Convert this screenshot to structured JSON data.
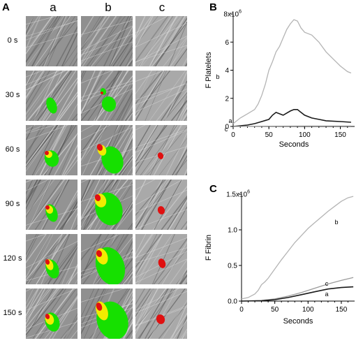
{
  "panel_a": {
    "letter": "A",
    "columns": [
      "a",
      "b",
      "c"
    ],
    "rows": [
      "0 s",
      "30 s",
      "60 s",
      "90 s",
      "120 s",
      "150 s"
    ]
  },
  "colors": {
    "platelets": "#16e000",
    "fibrin": "#e01010",
    "overlap": "#f3ec00",
    "trace_b": "#b4b4b4",
    "trace_a": "#1a1a1a",
    "trace_c": "#9a9a9a"
  },
  "chart_data": [
    {
      "type": "line",
      "panel": "B",
      "ylabel": "F Platelets",
      "xlabel": "Seconds",
      "y_multiplier": "x10",
      "y_multiplier_exp": "6",
      "xlim": [
        0,
        170
      ],
      "ylim": [
        0,
        8
      ],
      "xticks": [
        0,
        50,
        100,
        150
      ],
      "yticks": [
        0,
        2,
        4,
        6,
        8
      ],
      "ytick_labels": [
        "0",
        "2",
        "4",
        "6",
        "8x10"
      ],
      "series": [
        {
          "name": "b",
          "color": "#b4b4b4",
          "x": [
            0,
            10,
            20,
            30,
            35,
            40,
            45,
            50,
            55,
            60,
            65,
            70,
            75,
            80,
            85,
            90,
            95,
            100,
            110,
            120,
            130,
            140,
            150,
            160,
            165
          ],
          "y": [
            0.2,
            0.6,
            0.9,
            1.2,
            1.6,
            2.2,
            3.0,
            4.0,
            4.6,
            5.3,
            5.7,
            6.3,
            6.9,
            7.3,
            7.6,
            7.5,
            7.0,
            6.7,
            6.5,
            6.0,
            5.3,
            4.8,
            4.3,
            3.9,
            3.8
          ]
        },
        {
          "name": "a",
          "color": "#1a1a1a",
          "x": [
            0,
            20,
            30,
            40,
            50,
            55,
            60,
            65,
            70,
            80,
            85,
            90,
            95,
            100,
            110,
            120,
            130,
            150,
            165
          ],
          "y": [
            0,
            0.1,
            0.2,
            0.35,
            0.5,
            0.8,
            1.0,
            0.9,
            0.8,
            1.1,
            1.2,
            1.2,
            1.0,
            0.8,
            0.6,
            0.5,
            0.4,
            0.35,
            0.3
          ]
        },
        {
          "name": "c",
          "color": "#9a9a9a",
          "x": [
            0,
            50,
            100,
            165
          ],
          "y": [
            0,
            0.02,
            0.03,
            0.03
          ]
        }
      ]
    },
    {
      "type": "line",
      "panel": "C",
      "ylabel": "F Fibrin",
      "xlabel": "Seconds",
      "y_multiplier": "1.5x10",
      "y_multiplier_exp": "6",
      "xlim": [
        0,
        170
      ],
      "ylim": [
        0,
        1.5
      ],
      "xticks": [
        0,
        50,
        100,
        150
      ],
      "yticks": [
        0,
        0.5,
        1.0,
        1.5
      ],
      "ytick_labels": [
        "0.0",
        "0.5",
        "1.0",
        "1.5x10"
      ],
      "series": [
        {
          "name": "b",
          "color": "#b4b4b4",
          "x": [
            0,
            10,
            20,
            25,
            30,
            35,
            40,
            50,
            60,
            70,
            80,
            90,
            100,
            110,
            120,
            130,
            140,
            150,
            160,
            168
          ],
          "y": [
            0.03,
            0.05,
            0.1,
            0.15,
            0.23,
            0.27,
            0.32,
            0.45,
            0.58,
            0.7,
            0.82,
            0.92,
            1.02,
            1.1,
            1.18,
            1.26,
            1.33,
            1.4,
            1.45,
            1.47
          ]
        },
        {
          "name": "c",
          "color": "#9a9a9a",
          "x": [
            0,
            30,
            50,
            70,
            90,
            110,
            130,
            150,
            168
          ],
          "y": [
            0,
            0.01,
            0.03,
            0.07,
            0.12,
            0.18,
            0.24,
            0.29,
            0.33
          ]
        },
        {
          "name": "a",
          "color": "#1a1a1a",
          "x": [
            0,
            30,
            50,
            70,
            90,
            110,
            130,
            150,
            168
          ],
          "y": [
            0,
            0.005,
            0.02,
            0.05,
            0.09,
            0.13,
            0.17,
            0.19,
            0.2
          ]
        }
      ]
    }
  ]
}
